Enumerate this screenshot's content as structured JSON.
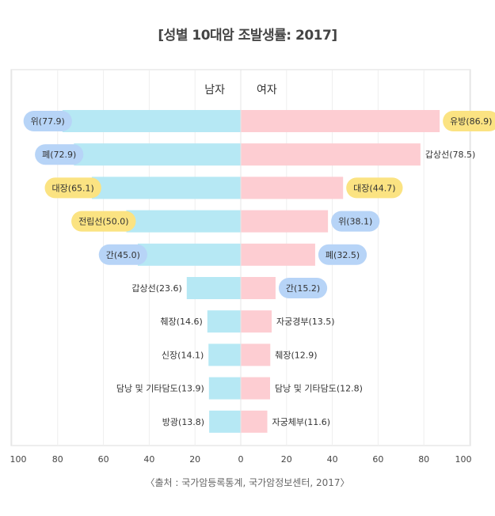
{
  "chart_data": {
    "type": "bar",
    "orientation": "horizontal-butterfly",
    "title": "[성별 10대암 조발생률: 2017]",
    "source": "〈출처 : 국가암등록통계, 국가암정보센터, 2017〉",
    "xlim": [
      0,
      100
    ],
    "xticks_left": [
      "100",
      "80",
      "60",
      "40",
      "20",
      "0"
    ],
    "xticks_right": [
      "20",
      "40",
      "60",
      "80",
      "100"
    ],
    "grid": true,
    "colors": {
      "male_bar": "#b6e8f4",
      "female_bar": "#fdcdd2",
      "badge_blue": "#b7d4f7",
      "badge_yellow": "#fbe382",
      "grid": "#eeeeee",
      "frame": "#dddddd"
    },
    "series": [
      {
        "name": "남자",
        "items": [
          {
            "label": "위(77.9)",
            "value": 77.9,
            "badge": "blue"
          },
          {
            "label": "폐(72.9)",
            "value": 72.9,
            "badge": "blue"
          },
          {
            "label": "대장(65.1)",
            "value": 65.1,
            "badge": "yellow"
          },
          {
            "label": "전립선(50.0)",
            "value": 50.0,
            "badge": "yellow"
          },
          {
            "label": "간(45.0)",
            "value": 45.0,
            "badge": "blue"
          },
          {
            "label": "갑상선(23.6)",
            "value": 23.6,
            "badge": "none"
          },
          {
            "label": "췌장(14.6)",
            "value": 14.6,
            "badge": "none"
          },
          {
            "label": "신장(14.1)",
            "value": 14.1,
            "badge": "none"
          },
          {
            "label": "담낭 및 기타담도(13.9)",
            "value": 13.9,
            "badge": "none"
          },
          {
            "label": "방광(13.8)",
            "value": 13.8,
            "badge": "none"
          }
        ]
      },
      {
        "name": "여자",
        "items": [
          {
            "label": "유방(86.9)",
            "value": 86.9,
            "badge": "yellow"
          },
          {
            "label": "갑상선(78.5)",
            "value": 78.5,
            "badge": "none"
          },
          {
            "label": "대장(44.7)",
            "value": 44.7,
            "badge": "yellow"
          },
          {
            "label": "위(38.1)",
            "value": 38.1,
            "badge": "blue"
          },
          {
            "label": "폐(32.5)",
            "value": 32.5,
            "badge": "blue"
          },
          {
            "label": "간(15.2)",
            "value": 15.2,
            "badge": "blue"
          },
          {
            "label": "자궁경부(13.5)",
            "value": 13.5,
            "badge": "none"
          },
          {
            "label": "췌장(12.9)",
            "value": 12.9,
            "badge": "none"
          },
          {
            "label": "담낭 및 기타담도(12.8)",
            "value": 12.8,
            "badge": "none"
          },
          {
            "label": "자궁체부(11.6)",
            "value": 11.6,
            "badge": "none"
          }
        ]
      }
    ]
  }
}
